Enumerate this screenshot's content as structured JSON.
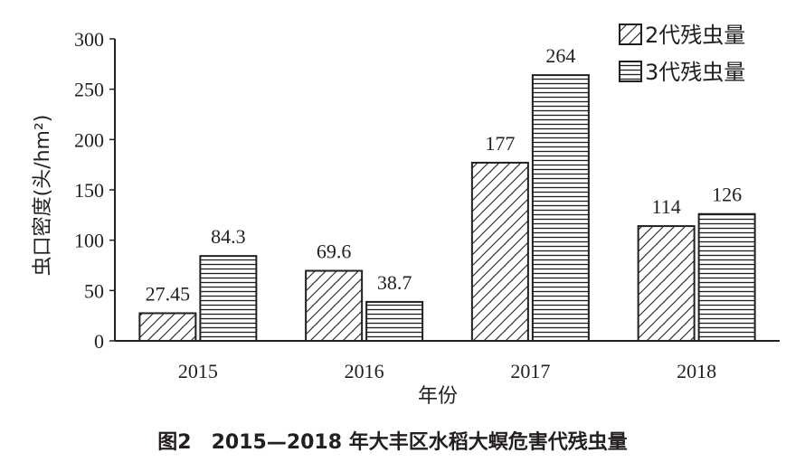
{
  "chart_data": {
    "type": "bar",
    "categories": [
      "2015",
      "2016",
      "2017",
      "2018"
    ],
    "series": [
      {
        "name": "2代残虫量",
        "values": [
          27.45,
          69.6,
          177,
          114
        ],
        "labels": [
          "27.45",
          "69.6",
          "177",
          "114"
        ],
        "pattern": "diagonal-hatch"
      },
      {
        "name": "3代残虫量",
        "values": [
          84.3,
          38.7,
          264,
          126
        ],
        "labels": [
          "84.3",
          "38.7",
          "264",
          "126"
        ],
        "pattern": "horizontal-lines"
      }
    ],
    "xlabel": "年份",
    "ylabel": "虫口密度(头/hm²)",
    "ylim": [
      0,
      300
    ],
    "yticks": [
      0,
      50,
      100,
      150,
      200,
      250,
      300
    ],
    "legend_position": "top-right",
    "grid": false
  },
  "caption": "图2　2015—2018 年大丰区水稻大螟危害代残虫量",
  "colors": {
    "ink": "#231f20",
    "background": "#ffffff"
  }
}
